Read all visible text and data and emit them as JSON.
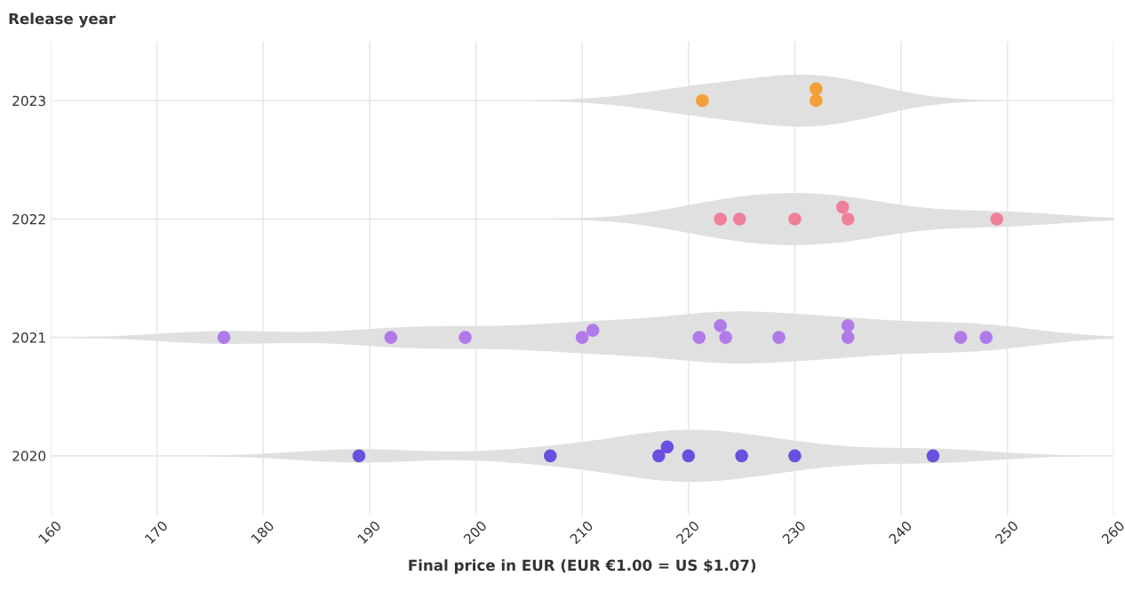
{
  "chart_data": {
    "type": "scatter",
    "xlabel": "Final price in EUR (EUR €1.00 = US $1.07)",
    "ylabel": "Release year",
    "xlim": [
      160,
      260
    ],
    "xticks": [
      160,
      170,
      180,
      190,
      200,
      210,
      220,
      230,
      240,
      250,
      260
    ],
    "ylim": [
      2019.5,
      2023.5
    ],
    "yticks": [
      2020,
      2021,
      2022,
      2023
    ],
    "grid": true,
    "marker": "circle",
    "series": [
      {
        "color": "#6b4fe0",
        "x": [
          189,
          207,
          217.2,
          218,
          220,
          225,
          230,
          243
        ],
        "values": [
          2020,
          2020,
          2020,
          2020.075,
          2020,
          2020,
          2020,
          2020
        ]
      },
      {
        "color": "#b07ae8",
        "x": [
          176.3,
          192,
          199,
          210,
          211,
          221,
          223,
          223.5,
          228.5,
          235,
          235,
          245.6,
          248
        ],
        "values": [
          2021,
          2021,
          2021,
          2021,
          2021.06,
          2021,
          2021.1,
          2021,
          2021,
          2021.1,
          2021,
          2021,
          2021
        ]
      },
      {
        "color": "#f07f9a",
        "x": [
          223,
          224.8,
          230,
          234.5,
          235,
          249
        ],
        "values": [
          2022,
          2022,
          2022,
          2022.1,
          2022,
          2022
        ]
      },
      {
        "color": "#f4a03a",
        "x": [
          221.3,
          232,
          232
        ],
        "values": [
          2023,
          2023.1,
          2023
        ]
      }
    ]
  }
}
